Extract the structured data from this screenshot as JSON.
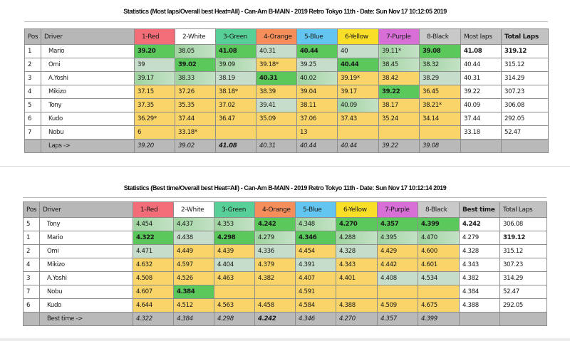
{
  "colors": {
    "lane_red": "#f26d78",
    "lane_white": "#ffffff",
    "lane_green": "#58cf97",
    "lane_orange": "#f58e5a",
    "lane_blue": "#63c6f0",
    "lane_yellow": "#f9df27",
    "lane_purple": "#d86fd6",
    "lane_black": "#c9c9c9",
    "best_cell": "#5ac85a",
    "good_cell": "#a8d8a8",
    "pale_cell": "#c7ddcb",
    "slow_cell": "#f9d468",
    "header_grey": "#b7b7b7"
  },
  "table1": {
    "title": "Statistics (Most laps/Overall best Heat=All) - Can-Am B-MAIN - 2019 Retro Tokyo 11th - Date: Sun Nov 17 10:12:05 2019",
    "headers": [
      "Pos",
      "Driver",
      "1-Red",
      "2-White",
      "3-Green",
      "4-Orange",
      "5-Blue",
      "6-Yellow",
      "7-Purple",
      "8-Black",
      "Most laps",
      "Total Laps"
    ],
    "rows": [
      {
        "pos": "1",
        "driver": "Mario",
        "lanes": [
          "39.20",
          "38.05",
          "41.08",
          "40.31",
          "40.44",
          "40",
          "39.11*",
          "39.08"
        ],
        "shade": [
          "g",
          "l",
          "g",
          "p",
          "g",
          "p",
          "l",
          "g"
        ],
        "best": "41.08",
        "total": "319.12"
      },
      {
        "pos": "2",
        "driver": "Omi",
        "lanes": [
          "39",
          "39.02",
          "39.09",
          "39.18*",
          "39.25",
          "40.44",
          "38.45",
          "38.32"
        ],
        "shade": [
          "p",
          "g",
          "l",
          "y",
          "p",
          "g",
          "l",
          "l"
        ],
        "best": "40.44",
        "total": "315.12"
      },
      {
        "pos": "3",
        "driver": "A.Yoshi",
        "lanes": [
          "39.17",
          "38.33",
          "38.19",
          "40.31",
          "40.02",
          "39.19*",
          "38.42",
          "38.29"
        ],
        "shade": [
          "l",
          "l",
          "p",
          "g",
          "l",
          "y",
          "y",
          "p"
        ],
        "best": "40.31",
        "total": "314.29"
      },
      {
        "pos": "4",
        "driver": "Mikizo",
        "lanes": [
          "37.15",
          "37.26",
          "38.18*",
          "38.39",
          "39.04",
          "39.17",
          "39.22",
          "36.45"
        ],
        "shade": [
          "y",
          "y",
          "y",
          "y",
          "y",
          "y",
          "g",
          "y"
        ],
        "best": "39.22",
        "total": "307.23"
      },
      {
        "pos": "5",
        "driver": "Tony",
        "lanes": [
          "37.35",
          "35.35",
          "37.02",
          "39.41",
          "38.11",
          "40.09",
          "38.17",
          "38.21*"
        ],
        "shade": [
          "y",
          "y",
          "y",
          "p",
          "y",
          "l",
          "y",
          "y"
        ],
        "best": "40.09",
        "total": "306.08"
      },
      {
        "pos": "6",
        "driver": "Kudo",
        "lanes": [
          "36.29*",
          "37.44",
          "36.47",
          "35.09",
          "37.06",
          "37.43",
          "35.24",
          "34.14"
        ],
        "shade": [
          "y",
          "y",
          "y",
          "y",
          "y",
          "y",
          "y",
          "y"
        ],
        "best": "37.44",
        "total": "292.05"
      },
      {
        "pos": "7",
        "driver": "Nobu",
        "lanes": [
          "6",
          "33.18*",
          "",
          "",
          "13",
          "",
          "",
          ""
        ],
        "shade": [
          "y",
          "y",
          "y",
          "y",
          "y",
          "y",
          "y",
          "y"
        ],
        "best": "33.18",
        "total": "52.47"
      }
    ],
    "footer_label": "Laps ->",
    "footer_values": [
      "39.20",
      "39.02",
      "41.08",
      "40.31",
      "40.44",
      "40.44",
      "39.22",
      "39.08"
    ]
  },
  "table2": {
    "title": "Statistics (Best time/Overall best Heat=All) - Can-Am B-MAIN - 2019 Retro Tokyo 11th - Date: Sun Nov 17 10:12:14 2019",
    "headers": [
      "Pos",
      "Driver",
      "1-Red",
      "2-White",
      "3-Green",
      "4-Orange",
      "5-Blue",
      "6-Yellow",
      "7-Purple",
      "8-Black",
      "Best time",
      "Total Laps"
    ],
    "rows": [
      {
        "pos": "5",
        "driver": "Tony",
        "lanes": [
          "4.454",
          "4.437",
          "4.353",
          "4.242",
          "4.348",
          "4.270",
          "4.357",
          "4.399"
        ],
        "shade": [
          "l",
          "l",
          "l",
          "g",
          "l",
          "g",
          "g",
          "g"
        ],
        "best": "4.242",
        "total": "306.08"
      },
      {
        "pos": "1",
        "driver": "Mario",
        "lanes": [
          "4.322",
          "4.438",
          "4.298",
          "4.279",
          "4.346",
          "4.288",
          "4.395",
          "4.470"
        ],
        "shade": [
          "g",
          "p",
          "g",
          "l",
          "g",
          "l",
          "l",
          "l"
        ],
        "best": "4.279",
        "total": "319.12"
      },
      {
        "pos": "2",
        "driver": "Omi",
        "lanes": [
          "4.471",
          "4.449",
          "4.439",
          "4.336",
          "4.454",
          "4.328",
          "4.429",
          "4.600"
        ],
        "shade": [
          "p",
          "y",
          "y",
          "p",
          "y",
          "p",
          "y",
          "y"
        ],
        "best": "4.328",
        "total": "315.12"
      },
      {
        "pos": "4",
        "driver": "Mikizo",
        "lanes": [
          "4.632",
          "4.597",
          "4.404",
          "4.379",
          "4.391",
          "4.343",
          "4.442",
          "4.601"
        ],
        "shade": [
          "y",
          "y",
          "p",
          "y",
          "p",
          "y",
          "y",
          "y"
        ],
        "best": "4.343",
        "total": "307.23"
      },
      {
        "pos": "3",
        "driver": "A.Yoshi",
        "lanes": [
          "4.508",
          "4.526",
          "4.463",
          "4.382",
          "4.407",
          "4.401",
          "4.408",
          "4.534"
        ],
        "shade": [
          "y",
          "y",
          "y",
          "y",
          "y",
          "y",
          "p",
          "p"
        ],
        "best": "4.382",
        "total": "314.29"
      },
      {
        "pos": "7",
        "driver": "Nobu",
        "lanes": [
          "4.607",
          "4.384",
          "",
          "",
          "4.591",
          "",
          "",
          ""
        ],
        "shade": [
          "y",
          "g",
          "y",
          "y",
          "y",
          "y",
          "y",
          "y"
        ],
        "best": "4.384",
        "total": "52.47"
      },
      {
        "pos": "6",
        "driver": "Kudo",
        "lanes": [
          "4.644",
          "4.512",
          "4.563",
          "4.458",
          "4.584",
          "4.388",
          "4.509",
          "4.675"
        ],
        "shade": [
          "y",
          "y",
          "y",
          "y",
          "y",
          "y",
          "y",
          "y"
        ],
        "best": "4.388",
        "total": "292.05"
      }
    ],
    "footer_label": "Best time ->",
    "footer_values": [
      "4.322",
      "4.384",
      "4.298",
      "4.242",
      "4.346",
      "4.270",
      "4.357",
      "4.399"
    ]
  }
}
